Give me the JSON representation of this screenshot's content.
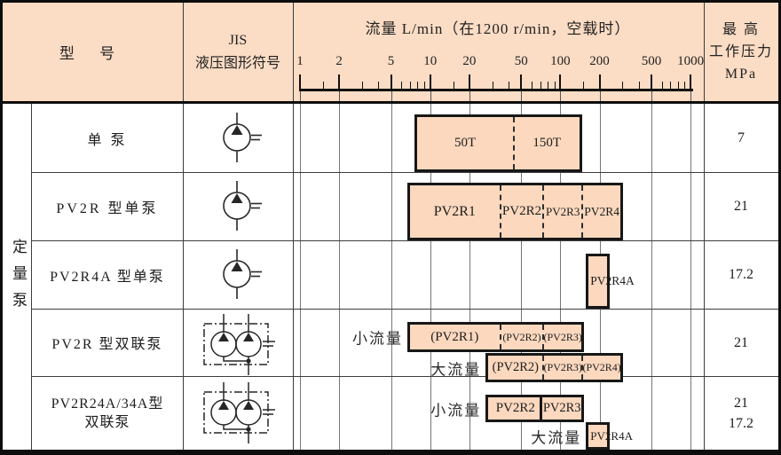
{
  "header": {
    "model_col": "型  号",
    "jis_col": "JIS\n液压图形符号",
    "pressure_col": "最  高\n工作压力\nMPa"
  },
  "side_label": "定量泵",
  "chart_data": {
    "type": "bar",
    "subtype": "horizontal-log-range-bars",
    "title": "流量 L/min（在1200 r/min，空载时）",
    "xlabel": "L/min",
    "x_axis": {
      "scale": "log",
      "range": [
        1,
        1000
      ],
      "major_ticks": [
        1,
        2,
        5,
        10,
        20,
        50,
        100,
        200,
        500,
        1000
      ],
      "minor_ticks": [
        1.5,
        3,
        4,
        6,
        7,
        8,
        9,
        15,
        30,
        40,
        60,
        70,
        80,
        90,
        150,
        300,
        400,
        600,
        700,
        800,
        900
      ]
    },
    "pressure_unit": "MPa",
    "rows": [
      {
        "model": "单 泵",
        "symbol": "single-pump",
        "pressure": "7",
        "bars": [
          {
            "prefix": "",
            "segments": [
              {
                "label": "50T",
                "from": 8,
                "to": 43
              },
              {
                "label": "150T",
                "from": 43,
                "to": 140
              }
            ]
          }
        ]
      },
      {
        "model": "PV2R 型单泵",
        "symbol": "single-pump",
        "pressure": "21",
        "bars": [
          {
            "prefix": "",
            "segments": [
              {
                "label": "PV2R1",
                "from": 7,
                "to": 34
              },
              {
                "label": "PV2R2",
                "from": 34,
                "to": 73
              },
              {
                "label": "PV2R3",
                "from": 73,
                "to": 145
              },
              {
                "label": "PV2R4",
                "from": 145,
                "to": 290
              }
            ]
          }
        ]
      },
      {
        "model": "PV2R4A 型单泵",
        "symbol": "single-pump",
        "pressure": "17.2",
        "bars": [
          {
            "prefix": "",
            "segments": [
              {
                "label": "PV2R4A",
                "from": 165,
                "to": 230
              }
            ]
          }
        ]
      },
      {
        "model": "PV2R 型双联泵",
        "symbol": "double-pump",
        "pressure": "21",
        "bars": [
          {
            "prefix": "小流量",
            "segments": [
              {
                "label": "(PV2R1)",
                "from": 7,
                "to": 34
              },
              {
                "label": "(PV2R2)",
                "from": 34,
                "to": 73
              },
              {
                "label": "(PV2R3)",
                "from": 73,
                "to": 145
              }
            ]
          },
          {
            "prefix": "大流量",
            "segments": [
              {
                "label": "(PV2R2)",
                "from": 28,
                "to": 73
              },
              {
                "label": "(PV2R3)",
                "from": 73,
                "to": 145
              },
              {
                "label": "(PV2R4)",
                "from": 145,
                "to": 290
              }
            ]
          }
        ]
      },
      {
        "model": "PV2R24A/34A型\n双联泵",
        "symbol": "double-pump",
        "pressure": "21\n17.2",
        "bars": [
          {
            "prefix": "小流量",
            "segments": [
              {
                "label": "PV2R2",
                "from": 28,
                "to": 73
              },
              {
                "label": "PV2R3",
                "from": 73,
                "to": 145
              }
            ]
          },
          {
            "prefix": "大流量",
            "segments": [
              {
                "label": "PV2R4A",
                "from": 165,
                "to": 230
              }
            ]
          }
        ]
      }
    ]
  },
  "colors": {
    "header_bg": "#fbdcc4",
    "bar_fill": "#fbd8be",
    "border": "#171717"
  }
}
